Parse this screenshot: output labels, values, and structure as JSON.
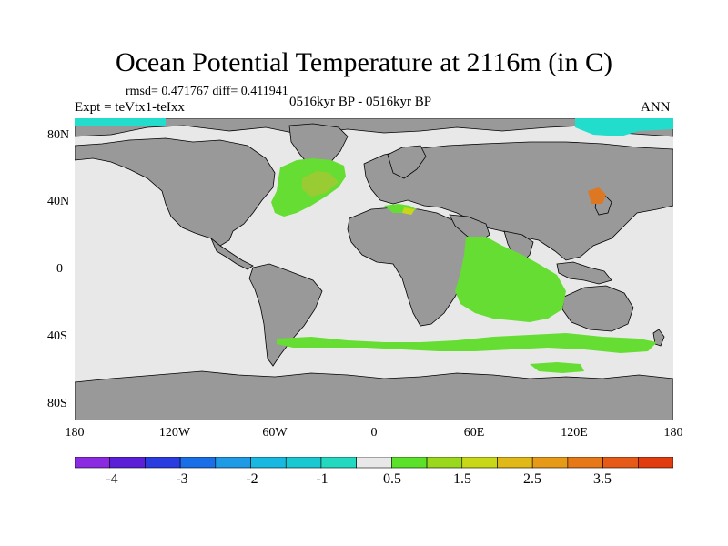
{
  "title": "Ocean Potential Temperature at 2116m (in C)",
  "stats": "rmsd= 0.471767 diff= 0.411941",
  "experiment": "Expt = teVtx1-teIxx",
  "period": "0516kyr BP - 0516kyr BP",
  "season": "ANN",
  "lat_labels": [
    "80N",
    "40N",
    "0",
    "40S",
    "80S"
  ],
  "lon_labels": [
    "180",
    "120W",
    "60W",
    "0",
    "60E",
    "120E",
    "180"
  ],
  "colorbar": {
    "colors": [
      "#8a2be2",
      "#5a1fd6",
      "#2a3be0",
      "#1a6ee6",
      "#1f9be6",
      "#18b8e0",
      "#19c8d0",
      "#22d8c0",
      "#e8e8e8",
      "#5ce12a",
      "#9ad81e",
      "#c8d818",
      "#e0b818",
      "#e69a18",
      "#e67818",
      "#e65a18",
      "#e03c10"
    ],
    "labels": [
      "-4",
      "-3",
      "-2",
      "-1",
      "0.5",
      "1.5",
      "2.5",
      "3.5"
    ]
  },
  "colors": {
    "ocean_base": "#e8e8e8",
    "land": "#999999",
    "anomaly_low": "#66dd33",
    "anomaly_mid": "#99cc33",
    "anomaly_high": "#dd7722",
    "cold_anomaly": "#22ddcc"
  }
}
